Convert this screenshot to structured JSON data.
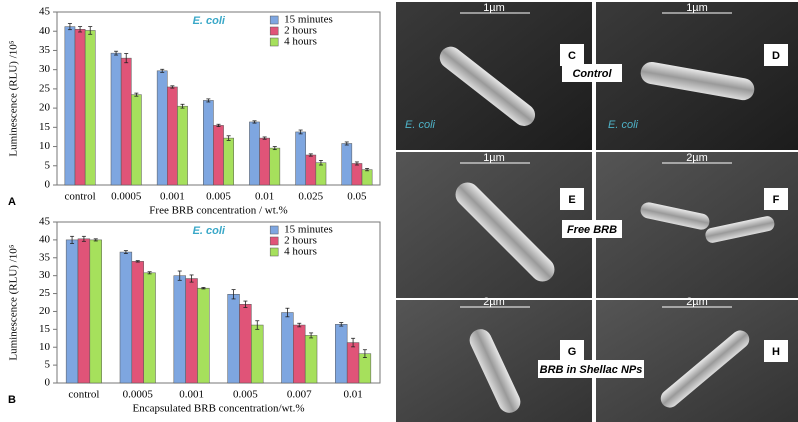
{
  "chart_data": [
    {
      "type": "bar",
      "label": "A",
      "annotation": "E. coli",
      "y_label": "Luminescence (RLU) /10⁵",
      "x_label": "Free BRB concentration / wt.%",
      "categories": [
        "control",
        "0.0005",
        "0.001",
        "0.005",
        "0.01",
        "0.025",
        "0.05"
      ],
      "series": [
        {
          "name": "15 minutes",
          "color": "#7ea6e0",
          "values": [
            41.2,
            34.3,
            29.7,
            22,
            16.4,
            13.8,
            10.8
          ],
          "errors": [
            0.8,
            0.5,
            0.4,
            0.4,
            0.3,
            0.5,
            0.4
          ]
        },
        {
          "name": "2 hours",
          "color": "#e05478",
          "values": [
            40.5,
            33,
            25.5,
            15.5,
            12.2,
            7.8,
            5.6
          ],
          "errors": [
            0.7,
            1.2,
            0.3,
            0.3,
            0.3,
            0.3,
            0.4
          ]
        },
        {
          "name": "4 hours",
          "color": "#a6e05c",
          "values": [
            40.2,
            23.5,
            20.5,
            12.2,
            9.6,
            5.8,
            4.0
          ],
          "errors": [
            1.0,
            0.4,
            0.5,
            0.6,
            0.4,
            0.6,
            0.3
          ]
        }
      ],
      "ylim": [
        0,
        45
      ],
      "yticks": [
        0,
        5,
        10,
        15,
        20,
        25,
        30,
        35,
        40,
        45
      ]
    },
    {
      "type": "bar",
      "label": "B",
      "annotation": "E. coli",
      "y_label": "Luminescence (RLU) /10⁵",
      "x_label": "Encapsulated BRB concentration/wt.%",
      "categories": [
        "control",
        "0.0005",
        "0.001",
        "0.005",
        "0.007",
        "0.01"
      ],
      "series": [
        {
          "name": "15 minutes",
          "color": "#7ea6e0",
          "values": [
            40,
            36.6,
            30,
            24.8,
            19.7,
            16.4
          ],
          "errors": [
            1.0,
            0.4,
            1.3,
            1.3,
            1.2,
            0.5
          ]
        },
        {
          "name": "2 hours",
          "color": "#e05478",
          "values": [
            40.3,
            34,
            29.2,
            22,
            16.2,
            11.3
          ],
          "errors": [
            0.7,
            0.2,
            1.0,
            0.9,
            0.5,
            1.2
          ]
        },
        {
          "name": "4 hours",
          "color": "#a6e05c",
          "values": [
            40,
            30.8,
            26.5,
            16.2,
            13.3,
            8.2
          ],
          "errors": [
            0.3,
            0.3,
            0.2,
            1.2,
            0.7,
            1.1
          ]
        }
      ],
      "ylim": [
        0,
        45
      ],
      "yticks": [
        0,
        5,
        10,
        15,
        20,
        25,
        30,
        35,
        40,
        45
      ]
    }
  ],
  "micrographs": {
    "panels": [
      {
        "letter": "C",
        "scale": "1µm"
      },
      {
        "letter": "D",
        "scale": "1µm"
      },
      {
        "letter": "E",
        "scale": "1µm"
      },
      {
        "letter": "F",
        "scale": "2µm"
      },
      {
        "letter": "G",
        "scale": "2µm"
      },
      {
        "letter": "H",
        "scale": "2µm"
      }
    ],
    "row_labels": [
      "Control",
      "Free BRB",
      "BRB in Shellac NPs"
    ],
    "species_labels": [
      "E. coli",
      "E. coli"
    ]
  }
}
